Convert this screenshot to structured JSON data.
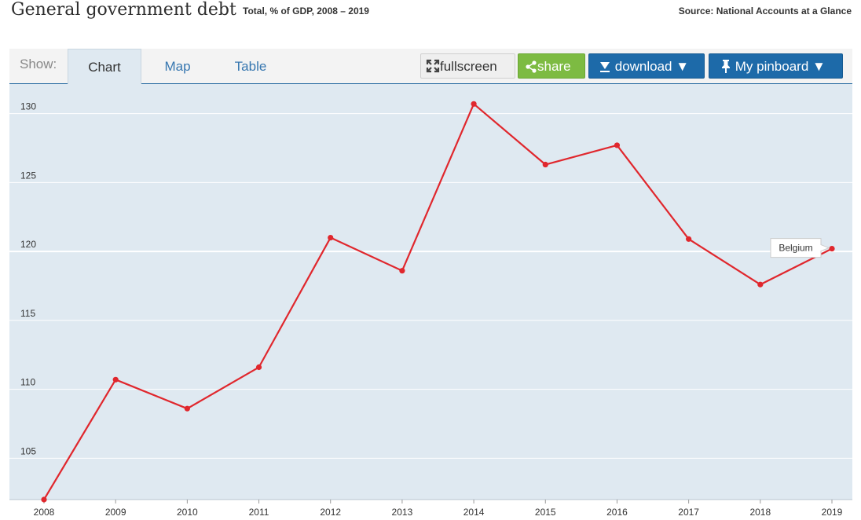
{
  "header": {
    "title": "General government debt",
    "subtitle": "Total, % of GDP, 2008 – 2019",
    "source": "Source: National Accounts at a Glance"
  },
  "toolbar": {
    "show_label": "Show:",
    "tabs": [
      {
        "label": "Chart",
        "active": true
      },
      {
        "label": "Map",
        "active": false
      },
      {
        "label": "Table",
        "active": false
      }
    ],
    "fullscreen_label": "fullscreen",
    "share_label": "share",
    "download_label": "download ▼",
    "pinboard_label": "My pinboard ▼"
  },
  "colors": {
    "plot_background": "#dfe9f1",
    "line": "#e0272d",
    "grid": "#ffffff",
    "accent": "#1d6aa9",
    "share": "#7dbb42"
  },
  "chart_data": {
    "type": "line",
    "title": "General government debt",
    "subtitle": "Total, % of GDP, 2008 – 2019",
    "xlabel": "",
    "ylabel": "",
    "x": [
      "2008",
      "2009",
      "2010",
      "2011",
      "2012",
      "2013",
      "2014",
      "2015",
      "2016",
      "2017",
      "2018",
      "2019"
    ],
    "yticks": [
      105,
      110,
      115,
      120,
      125,
      130
    ],
    "ylim": [
      102.0,
      131.8
    ],
    "grid": true,
    "series": [
      {
        "name": "Belgium",
        "values": [
          102.0,
          110.7,
          108.6,
          111.6,
          121.0,
          118.6,
          130.7,
          126.3,
          127.7,
          120.9,
          117.6,
          120.2
        ]
      }
    ],
    "annotations": [
      {
        "text": "Belgium",
        "series": "Belgium",
        "at": "2019"
      }
    ]
  }
}
